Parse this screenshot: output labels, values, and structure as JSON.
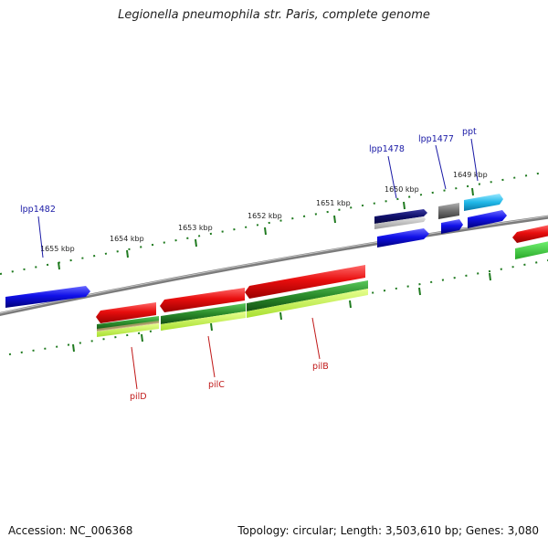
{
  "title": "Legionella pneumophila str. Paris, complete genome",
  "footer": {
    "accession": "Accession: NC_006368",
    "summary": "Topology: circular; Length: 3,503,610 bp; Genes: 3,080"
  },
  "scale_ticks": [
    {
      "label": "1655 kbp"
    },
    {
      "label": "1654 kbp"
    },
    {
      "label": "1653 kbp"
    },
    {
      "label": "1652 kbp"
    },
    {
      "label": "1651 kbp"
    },
    {
      "label": "1650 kbp"
    },
    {
      "label": "1649 kbp"
    }
  ],
  "feature_labels": [
    {
      "text": "lpp1482",
      "strand": "forward",
      "color": "#1a1aa6"
    },
    {
      "text": "lpp1478",
      "strand": "forward",
      "color": "#1a1aa6"
    },
    {
      "text": "lpp1477",
      "strand": "forward",
      "color": "#1a1aa6"
    },
    {
      "text": "ppt",
      "strand": "forward",
      "color": "#1a1aa6"
    },
    {
      "text": "pilD",
      "strand": "reverse",
      "color": "#c01818"
    },
    {
      "text": "pilC",
      "strand": "reverse",
      "color": "#c01818"
    },
    {
      "text": "pilB",
      "strand": "reverse",
      "color": "#c01818"
    }
  ],
  "colors": {
    "cds_forward": "#1010e0",
    "cds_reverse": "#e01010",
    "gc_content": "#2a8a2a",
    "gc_skew": "#b8f040",
    "scale_ticks": "#1f7a1f",
    "backbone": "#808080",
    "orf_dark": "#10106a",
    "gene_gray": "#6e6e6e",
    "rna_cyan": "#20b8e8"
  }
}
